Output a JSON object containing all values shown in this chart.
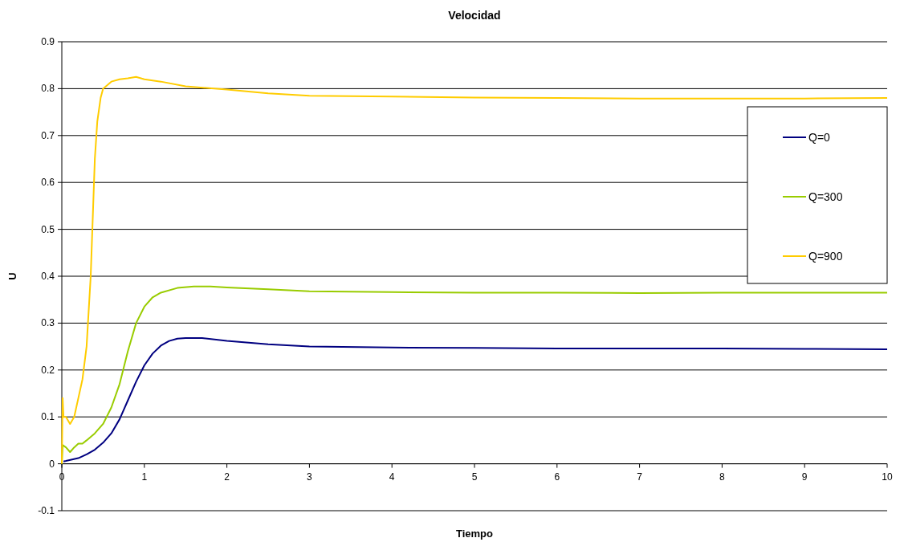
{
  "chart_data": {
    "type": "line",
    "title": "Velocidad",
    "xlabel": "Tiempo",
    "ylabel": "U",
    "xlim": [
      0,
      10
    ],
    "xticks": [
      0,
      1,
      2,
      3,
      4,
      5,
      6,
      7,
      8,
      9,
      10
    ],
    "ylim": [
      -0.1,
      0.9
    ],
    "yticks": [
      -0.1,
      0,
      0.1,
      0.2,
      0.3,
      0.4,
      0.5,
      0.6,
      0.7,
      0.8,
      0.9
    ],
    "grid": "y",
    "legend": "right",
    "marker": "none",
    "line_style": "solid",
    "series": [
      {
        "name": "Q=0",
        "color": "#000080",
        "x": [
          0.02,
          0.05,
          0.2,
          0.3,
          0.4,
          0.5,
          0.6,
          0.7,
          0.8,
          0.9,
          1.0,
          1.1,
          1.2,
          1.3,
          1.4,
          1.5,
          1.7,
          2,
          2.5,
          3,
          4,
          5,
          6,
          7,
          8,
          9,
          10
        ],
        "values": [
          0.005,
          0.006,
          0.012,
          0.02,
          0.03,
          0.045,
          0.065,
          0.095,
          0.135,
          0.175,
          0.21,
          0.235,
          0.252,
          0.262,
          0.267,
          0.268,
          0.268,
          0.262,
          0.255,
          0.25,
          0.248,
          0.247,
          0.246,
          0.246,
          0.246,
          0.245,
          0.244
        ]
      },
      {
        "name": "Q=300",
        "color": "#99cc00",
        "x": [
          0,
          0.01,
          0.05,
          0.1,
          0.15,
          0.2,
          0.25,
          0.3,
          0.4,
          0.5,
          0.6,
          0.7,
          0.8,
          0.9,
          1.0,
          1.1,
          1.2,
          1.4,
          1.6,
          1.8,
          2,
          2.5,
          3,
          4,
          5,
          6,
          7,
          8,
          9,
          10
        ],
        "values": [
          0,
          0.04,
          0.035,
          0.025,
          0.035,
          0.043,
          0.043,
          0.05,
          0.065,
          0.085,
          0.12,
          0.17,
          0.24,
          0.3,
          0.335,
          0.355,
          0.365,
          0.375,
          0.378,
          0.378,
          0.376,
          0.372,
          0.368,
          0.366,
          0.365,
          0.365,
          0.364,
          0.365,
          0.365,
          0.365
        ]
      },
      {
        "name": "Q=900",
        "color": "#ffcc00",
        "x": [
          0,
          0.01,
          0.02,
          0.05,
          0.1,
          0.15,
          0.2,
          0.25,
          0.3,
          0.35,
          0.38,
          0.4,
          0.43,
          0.47,
          0.5,
          0.6,
          0.7,
          0.8,
          0.9,
          1.0,
          1.2,
          1.5,
          2,
          2.5,
          3,
          4,
          5,
          6,
          7,
          8,
          9,
          10
        ],
        "values": [
          0,
          0.14,
          0.1,
          0.1,
          0.085,
          0.1,
          0.14,
          0.18,
          0.25,
          0.4,
          0.55,
          0.65,
          0.73,
          0.78,
          0.8,
          0.815,
          0.82,
          0.822,
          0.825,
          0.82,
          0.815,
          0.805,
          0.798,
          0.79,
          0.785,
          0.783,
          0.781,
          0.78,
          0.779,
          0.779,
          0.779,
          0.78
        ]
      }
    ]
  }
}
